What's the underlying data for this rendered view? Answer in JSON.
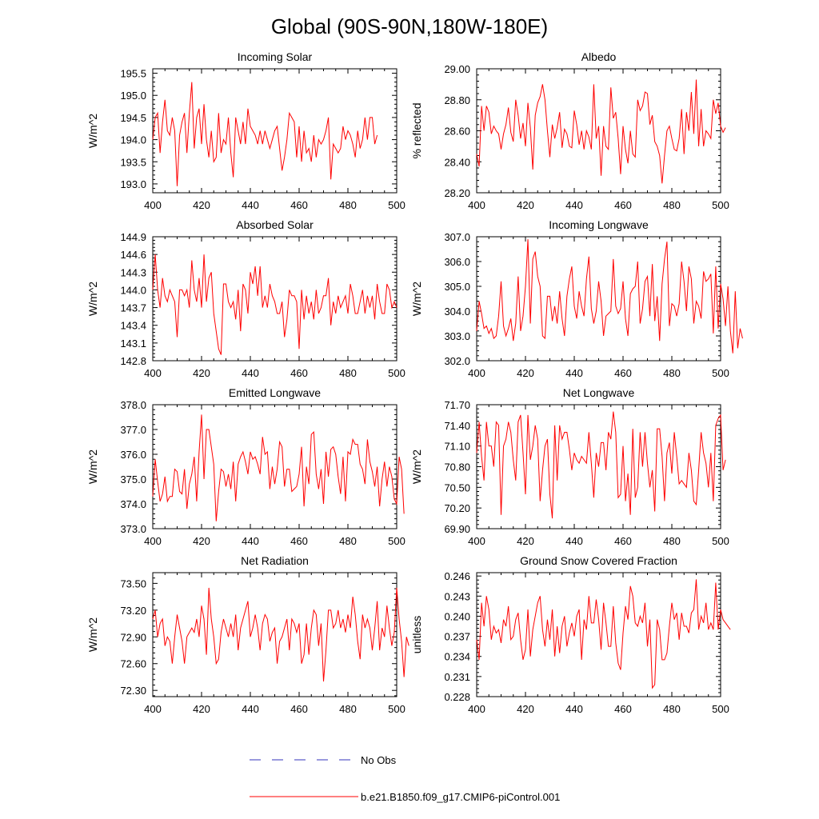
{
  "figure_title": "Global (90S-90N,180W-180E)",
  "legend": {
    "obs_label": "No Obs",
    "model_label": "b.e21.B1850.f09_g17.CMIP6-piControl.001",
    "obs_color": "#3333bb",
    "model_color": "#ff0000"
  },
  "chart_data": [
    {
      "type": "line",
      "title": "Incoming Solar",
      "ylabel": "W/m^2",
      "xlim": [
        400,
        500
      ],
      "xticks": [
        "400",
        "420",
        "440",
        "460",
        "480",
        "500"
      ],
      "ylim": [
        192.8,
        195.6
      ],
      "yticks": [
        "193.0",
        "193.5",
        "194.0",
        "194.5",
        "195.0",
        "195.5"
      ],
      "x_start": 400,
      "values": [
        194.0,
        194.5,
        194.6,
        193.7,
        194.4,
        194.9,
        194.2,
        194.1,
        194.5,
        194.2,
        192.95,
        194.1,
        194.4,
        194.6,
        193.7,
        194.6,
        195.3,
        193.8,
        194.5,
        194.7,
        193.9,
        194.8,
        194.0,
        193.6,
        194.2,
        193.5,
        193.6,
        194.6,
        193.7,
        194.0,
        193.9,
        194.5,
        193.7,
        193.15,
        194.5,
        194.2,
        193.9,
        194.4,
        193.9,
        194.7,
        194.3,
        194.2,
        194.1,
        193.9,
        194.2,
        193.9,
        194.2,
        194.0,
        193.8,
        194.0,
        194.2,
        194.3,
        193.8,
        193.3,
        193.6,
        194.0,
        194.6,
        194.5,
        194.4,
        193.6,
        194.3,
        193.5,
        194.2,
        193.7,
        193.8,
        193.5,
        194.1,
        193.6,
        194.0,
        193.9,
        194.0,
        194.2,
        194.5,
        193.1,
        193.9,
        193.8,
        193.7,
        193.8,
        194.3,
        194.0,
        194.2,
        194.1,
        193.9,
        193.6,
        194.2,
        193.8,
        194.0,
        194.5,
        194.0,
        194.5,
        194.5,
        193.9,
        194.1
      ]
    },
    {
      "type": "line",
      "title": "Albedo",
      "ylabel": "% reflected",
      "xlim": [
        400,
        500
      ],
      "xticks": [
        "400",
        "420",
        "440",
        "460",
        "480",
        "500"
      ],
      "ylim": [
        28.2,
        29.0
      ],
      "yticks": [
        "28.20",
        "28.40",
        "28.60",
        "28.80",
        "29.00"
      ],
      "x_start": 400,
      "values": [
        28.45,
        28.37,
        28.76,
        28.6,
        28.76,
        28.72,
        28.58,
        28.63,
        28.6,
        28.58,
        28.48,
        28.58,
        28.64,
        28.75,
        28.59,
        28.53,
        28.8,
        28.7,
        28.55,
        28.65,
        28.5,
        28.78,
        28.62,
        28.35,
        28.7,
        28.78,
        28.82,
        28.9,
        28.8,
        28.6,
        28.43,
        28.64,
        28.55,
        28.62,
        28.72,
        28.49,
        28.61,
        28.58,
        28.5,
        28.49,
        28.73,
        28.64,
        28.51,
        28.6,
        28.48,
        28.6,
        28.56,
        28.48,
        28.9,
        28.55,
        28.63,
        28.31,
        28.63,
        28.5,
        28.48,
        28.88,
        28.68,
        28.72,
        28.55,
        28.32,
        28.63,
        28.48,
        28.39,
        28.6,
        28.45,
        28.43,
        28.8,
        28.73,
        28.76,
        28.85,
        28.84,
        28.64,
        28.7,
        28.53,
        28.5,
        28.44,
        28.26,
        28.44,
        28.6,
        28.63,
        28.55,
        28.48,
        28.47,
        28.55,
        28.74,
        28.45,
        28.72,
        28.6,
        28.85,
        28.58,
        28.93,
        28.5,
        28.74,
        28.5,
        28.6,
        28.58,
        28.55,
        28.8,
        28.71,
        28.78,
        28.63,
        28.59,
        28.62
      ]
    },
    {
      "type": "line",
      "title": "Absorbed Solar",
      "ylabel": "W/m^2",
      "xlim": [
        400,
        500
      ],
      "xticks": [
        "400",
        "420",
        "440",
        "460",
        "480",
        "500"
      ],
      "ylim": [
        142.8,
        144.9
      ],
      "yticks": [
        "142.8",
        "143.1",
        "143.4",
        "143.7",
        "144.0",
        "144.3",
        "144.6",
        "144.9"
      ],
      "x_start": 400,
      "values": [
        144.0,
        144.6,
        144.0,
        143.7,
        144.2,
        143.9,
        143.8,
        144.0,
        143.9,
        143.8,
        143.2,
        144.0,
        144.0,
        143.9,
        144.0,
        143.7,
        144.5,
        144.0,
        143.8,
        144.2,
        143.7,
        144.6,
        143.8,
        144.2,
        144.3,
        143.6,
        143.3,
        143.0,
        142.9,
        144.1,
        144.1,
        143.8,
        143.7,
        143.8,
        143.5,
        144.0,
        143.3,
        144.1,
        144.0,
        143.6,
        144.3,
        144.1,
        144.4,
        143.9,
        144.4,
        143.7,
        143.9,
        143.7,
        144.1,
        143.9,
        143.8,
        143.6,
        143.6,
        143.8,
        143.2,
        143.5,
        144.0,
        143.9,
        143.9,
        143.8,
        143.0,
        144.0,
        143.5,
        143.9,
        143.6,
        143.8,
        143.5,
        144.0,
        143.6,
        143.7,
        143.9,
        143.9,
        144.2,
        143.4,
        143.8,
        143.6,
        143.9,
        143.7,
        143.8,
        143.9,
        143.6,
        144.1,
        143.9,
        143.6,
        143.6,
        143.8,
        144.0,
        143.6,
        143.9,
        143.7,
        143.9,
        143.5,
        144.1,
        143.8,
        143.6,
        143.6,
        144.1,
        144.0,
        143.7,
        143.8,
        143.7
      ]
    },
    {
      "type": "line",
      "title": "Incoming Longwave",
      "ylabel": "W/m^2",
      "xlim": [
        400,
        500
      ],
      "xticks": [
        "400",
        "420",
        "440",
        "460",
        "480",
        "500"
      ],
      "ylim": [
        302.0,
        307.0
      ],
      "yticks": [
        "302.0",
        "303.0",
        "304.0",
        "305.0",
        "306.0",
        "307.0"
      ],
      "x_start": 400,
      "values": [
        303.2,
        304.4,
        303.9,
        303.3,
        303.4,
        303.1,
        303.3,
        302.9,
        303.0,
        303.8,
        305.2,
        303.4,
        303.0,
        303.3,
        303.7,
        302.8,
        303.5,
        305.4,
        303.2,
        303.8,
        305.0,
        306.9,
        303.5,
        306.1,
        306.4,
        305.4,
        305.0,
        303.0,
        302.9,
        304.6,
        304.6,
        303.6,
        304.2,
        303.5,
        304.8,
        303.7,
        303.0,
        304.6,
        305.3,
        305.8,
        304.2,
        303.7,
        304.8,
        304.2,
        303.8,
        305.3,
        306.2,
        304.1,
        303.5,
        304.0,
        305.2,
        304.4,
        303.0,
        303.8,
        303.9,
        304.0,
        306.1,
        304.2,
        303.9,
        304.1,
        305.2,
        303.7,
        303.0,
        304.7,
        304.9,
        305.0,
        306.0,
        303.5,
        304.1,
        305.2,
        305.4,
        303.8,
        305.9,
        303.6,
        304.6,
        302.8,
        305.1,
        306.1,
        306.8,
        303.4,
        304.3,
        304.2,
        303.8,
        304.3,
        306.0,
        305.2,
        304.0,
        305.8,
        305.3,
        303.5,
        304.4,
        304.2,
        303.7,
        305.6,
        305.2,
        305.3,
        305.5,
        303.1,
        305.8,
        303.3,
        305.1,
        304.5,
        303.4,
        305.0,
        303.2,
        302.3,
        304.8,
        302.5,
        303.3,
        302.9
      ]
    },
    {
      "type": "line",
      "title": "Emitted Longwave",
      "ylabel": "W/m^2",
      "xlim": [
        400,
        500
      ],
      "xticks": [
        "400",
        "420",
        "440",
        "460",
        "480",
        "500"
      ],
      "ylim": [
        373.0,
        378.0
      ],
      "yticks": [
        "373.0",
        "374.0",
        "375.0",
        "376.0",
        "377.0",
        "378.0"
      ],
      "x_start": 400,
      "values": [
        374.3,
        375.8,
        374.9,
        374.1,
        374.4,
        375.1,
        374.1,
        374.3,
        374.3,
        375.4,
        375.3,
        374.5,
        374.4,
        375.4,
        373.8,
        374.8,
        375.2,
        375.9,
        374.1,
        376.1,
        377.6,
        375.0,
        377.0,
        377.0,
        376.3,
        375.6,
        373.3,
        374.5,
        375.4,
        375.3,
        374.7,
        375.2,
        374.6,
        375.7,
        374.1,
        375.6,
        375.9,
        376.1,
        375.7,
        375.2,
        376.1,
        375.8,
        375.9,
        375.6,
        375.2,
        376.7,
        376.0,
        376.1,
        374.6,
        375.5,
        374.8,
        375.4,
        376.5,
        376.3,
        374.7,
        375.4,
        375.4,
        374.5,
        374.6,
        374.7,
        375.2,
        376.3,
        373.9,
        375.5,
        374.8,
        376.8,
        376.9,
        375.2,
        374.6,
        375.4,
        374.0,
        376.1,
        375.1,
        376.2,
        376.3,
        376.0,
        375.1,
        374.4,
        375.9,
        374.1,
        376.1,
        376.0,
        376.6,
        376.4,
        376.4,
        375.6,
        375.4,
        374.8,
        376.6,
        375.7,
        375.3,
        374.7,
        375.5,
        373.9,
        375.0,
        375.7,
        374.7,
        375.5,
        375.1,
        374.2,
        374.0,
        375.9,
        375.4,
        373.6
      ]
    },
    {
      "type": "line",
      "title": "Net Longwave",
      "ylabel": "W/m^2",
      "xlim": [
        400,
        500
      ],
      "xticks": [
        "400",
        "420",
        "440",
        "460",
        "480",
        "500"
      ],
      "ylim": [
        69.9,
        71.7
      ],
      "yticks": [
        "69.90",
        "70.20",
        "70.50",
        "70.80",
        "71.10",
        "71.40",
        "71.70"
      ],
      "x_start": 400,
      "values": [
        71.0,
        71.45,
        70.95,
        70.6,
        71.45,
        71.1,
        71.1,
        70.8,
        71.45,
        71.4,
        70.1,
        71.1,
        71.2,
        71.45,
        71.3,
        70.9,
        70.6,
        71.45,
        71.55,
        71.0,
        70.4,
        71.55,
        70.9,
        71.1,
        71.4,
        71.2,
        70.3,
        70.75,
        71.1,
        71.2,
        70.4,
        70.05,
        71.4,
        70.6,
        71.4,
        71.2,
        71.3,
        71.3,
        71.05,
        70.75,
        71.0,
        70.9,
        70.85,
        70.95,
        70.9,
        70.85,
        71.3,
        70.85,
        70.35,
        71.0,
        70.8,
        71.15,
        71.15,
        70.75,
        71.3,
        71.2,
        71.6,
        71.3,
        70.35,
        70.4,
        71.1,
        70.3,
        70.7,
        70.1,
        71.35,
        70.35,
        70.5,
        71.3,
        70.8,
        71.3,
        70.85,
        70.5,
        70.75,
        70.15,
        71.35,
        71.35,
        70.95,
        70.3,
        71.0,
        71.15,
        70.7,
        71.3,
        70.95,
        70.55,
        70.6,
        70.55,
        70.5,
        71.0,
        70.75,
        70.3,
        70.25,
        70.75,
        71.3,
        71.0,
        70.85,
        70.5,
        71.0,
        70.3,
        71.4,
        71.5,
        71.55,
        70.75,
        70.9
      ]
    },
    {
      "type": "line",
      "title": "Net Radiation",
      "ylabel": "W/m^2",
      "xlim": [
        400,
        500
      ],
      "xticks": [
        "400",
        "420",
        "440",
        "460",
        "480",
        "500"
      ],
      "ylim": [
        72.23,
        73.62
      ],
      "yticks": [
        "72.30",
        "72.60",
        "72.90",
        "73.20",
        "73.50"
      ],
      "x_start": 400,
      "values": [
        73.1,
        73.2,
        72.9,
        73.05,
        73.1,
        72.8,
        72.9,
        72.85,
        72.6,
        72.9,
        73.15,
        73.0,
        72.85,
        72.6,
        72.9,
        72.95,
        73.0,
        72.95,
        73.1,
        72.9,
        73.25,
        73.1,
        72.7,
        73.45,
        73.1,
        72.9,
        72.6,
        72.65,
        72.95,
        73.1,
        73.0,
        72.9,
        73.05,
        72.9,
        73.15,
        72.75,
        73.0,
        73.1,
        73.2,
        73.3,
        72.9,
        73.0,
        73.15,
        73.0,
        72.75,
        73.05,
        73.15,
        73.1,
        72.85,
        72.95,
        73.0,
        72.6,
        72.85,
        72.9,
        73.0,
        73.1,
        72.75,
        73.1,
        73.05,
        72.95,
        73.05,
        72.6,
        72.7,
        73.05,
        72.7,
        73.0,
        73.2,
        73.15,
        72.8,
        73.05,
        72.4,
        72.75,
        73.2,
        73.2,
        73.0,
        73.05,
        73.2,
        73.0,
        73.1,
        72.95,
        73.15,
        73.0,
        73.35,
        73.15,
        72.85,
        72.65,
        73.15,
        73.0,
        73.1,
        73.0,
        72.75,
        73.0,
        73.3,
        72.75,
        73.0,
        72.9,
        73.25,
        73.0,
        72.8,
        72.95,
        73.45,
        73.1,
        72.85,
        72.45,
        72.9,
        72.8
      ]
    },
    {
      "type": "line",
      "title": "Ground Snow Covered Fraction",
      "ylabel": "unitless",
      "xlim": [
        400,
        500
      ],
      "xticks": [
        "400",
        "420",
        "440",
        "460",
        "480",
        "500"
      ],
      "ylim": [
        0.228,
        0.2465
      ],
      "yticks": [
        "0.228",
        "0.231",
        "0.234",
        "0.237",
        "0.240",
        "0.243",
        "0.246"
      ],
      "x_start": 400,
      "values": [
        0.2365,
        0.2335,
        0.242,
        0.2385,
        0.243,
        0.241,
        0.2365,
        0.2385,
        0.2375,
        0.238,
        0.236,
        0.2395,
        0.2385,
        0.2415,
        0.2365,
        0.237,
        0.2395,
        0.2405,
        0.2365,
        0.2335,
        0.235,
        0.241,
        0.234,
        0.238,
        0.24,
        0.242,
        0.243,
        0.238,
        0.2355,
        0.2395,
        0.2365,
        0.241,
        0.234,
        0.2385,
        0.2345,
        0.2385,
        0.24,
        0.2355,
        0.2375,
        0.239,
        0.237,
        0.24,
        0.241,
        0.2335,
        0.2395,
        0.238,
        0.243,
        0.239,
        0.239,
        0.2425,
        0.2395,
        0.235,
        0.242,
        0.239,
        0.2355,
        0.2355,
        0.2415,
        0.236,
        0.233,
        0.232,
        0.2375,
        0.2415,
        0.2395,
        0.2445,
        0.243,
        0.239,
        0.2385,
        0.24,
        0.239,
        0.242,
        0.2355,
        0.2395,
        0.2293,
        0.2298,
        0.2395,
        0.238,
        0.2335,
        0.2335,
        0.2345,
        0.2385,
        0.242,
        0.2395,
        0.2405,
        0.2365,
        0.2405,
        0.2385,
        0.2385,
        0.2375,
        0.2405,
        0.241,
        0.2455,
        0.238,
        0.24,
        0.239,
        0.242,
        0.238,
        0.239,
        0.238,
        0.245,
        0.238,
        0.241,
        0.2395,
        0.239,
        0.2385,
        0.238
      ]
    }
  ]
}
